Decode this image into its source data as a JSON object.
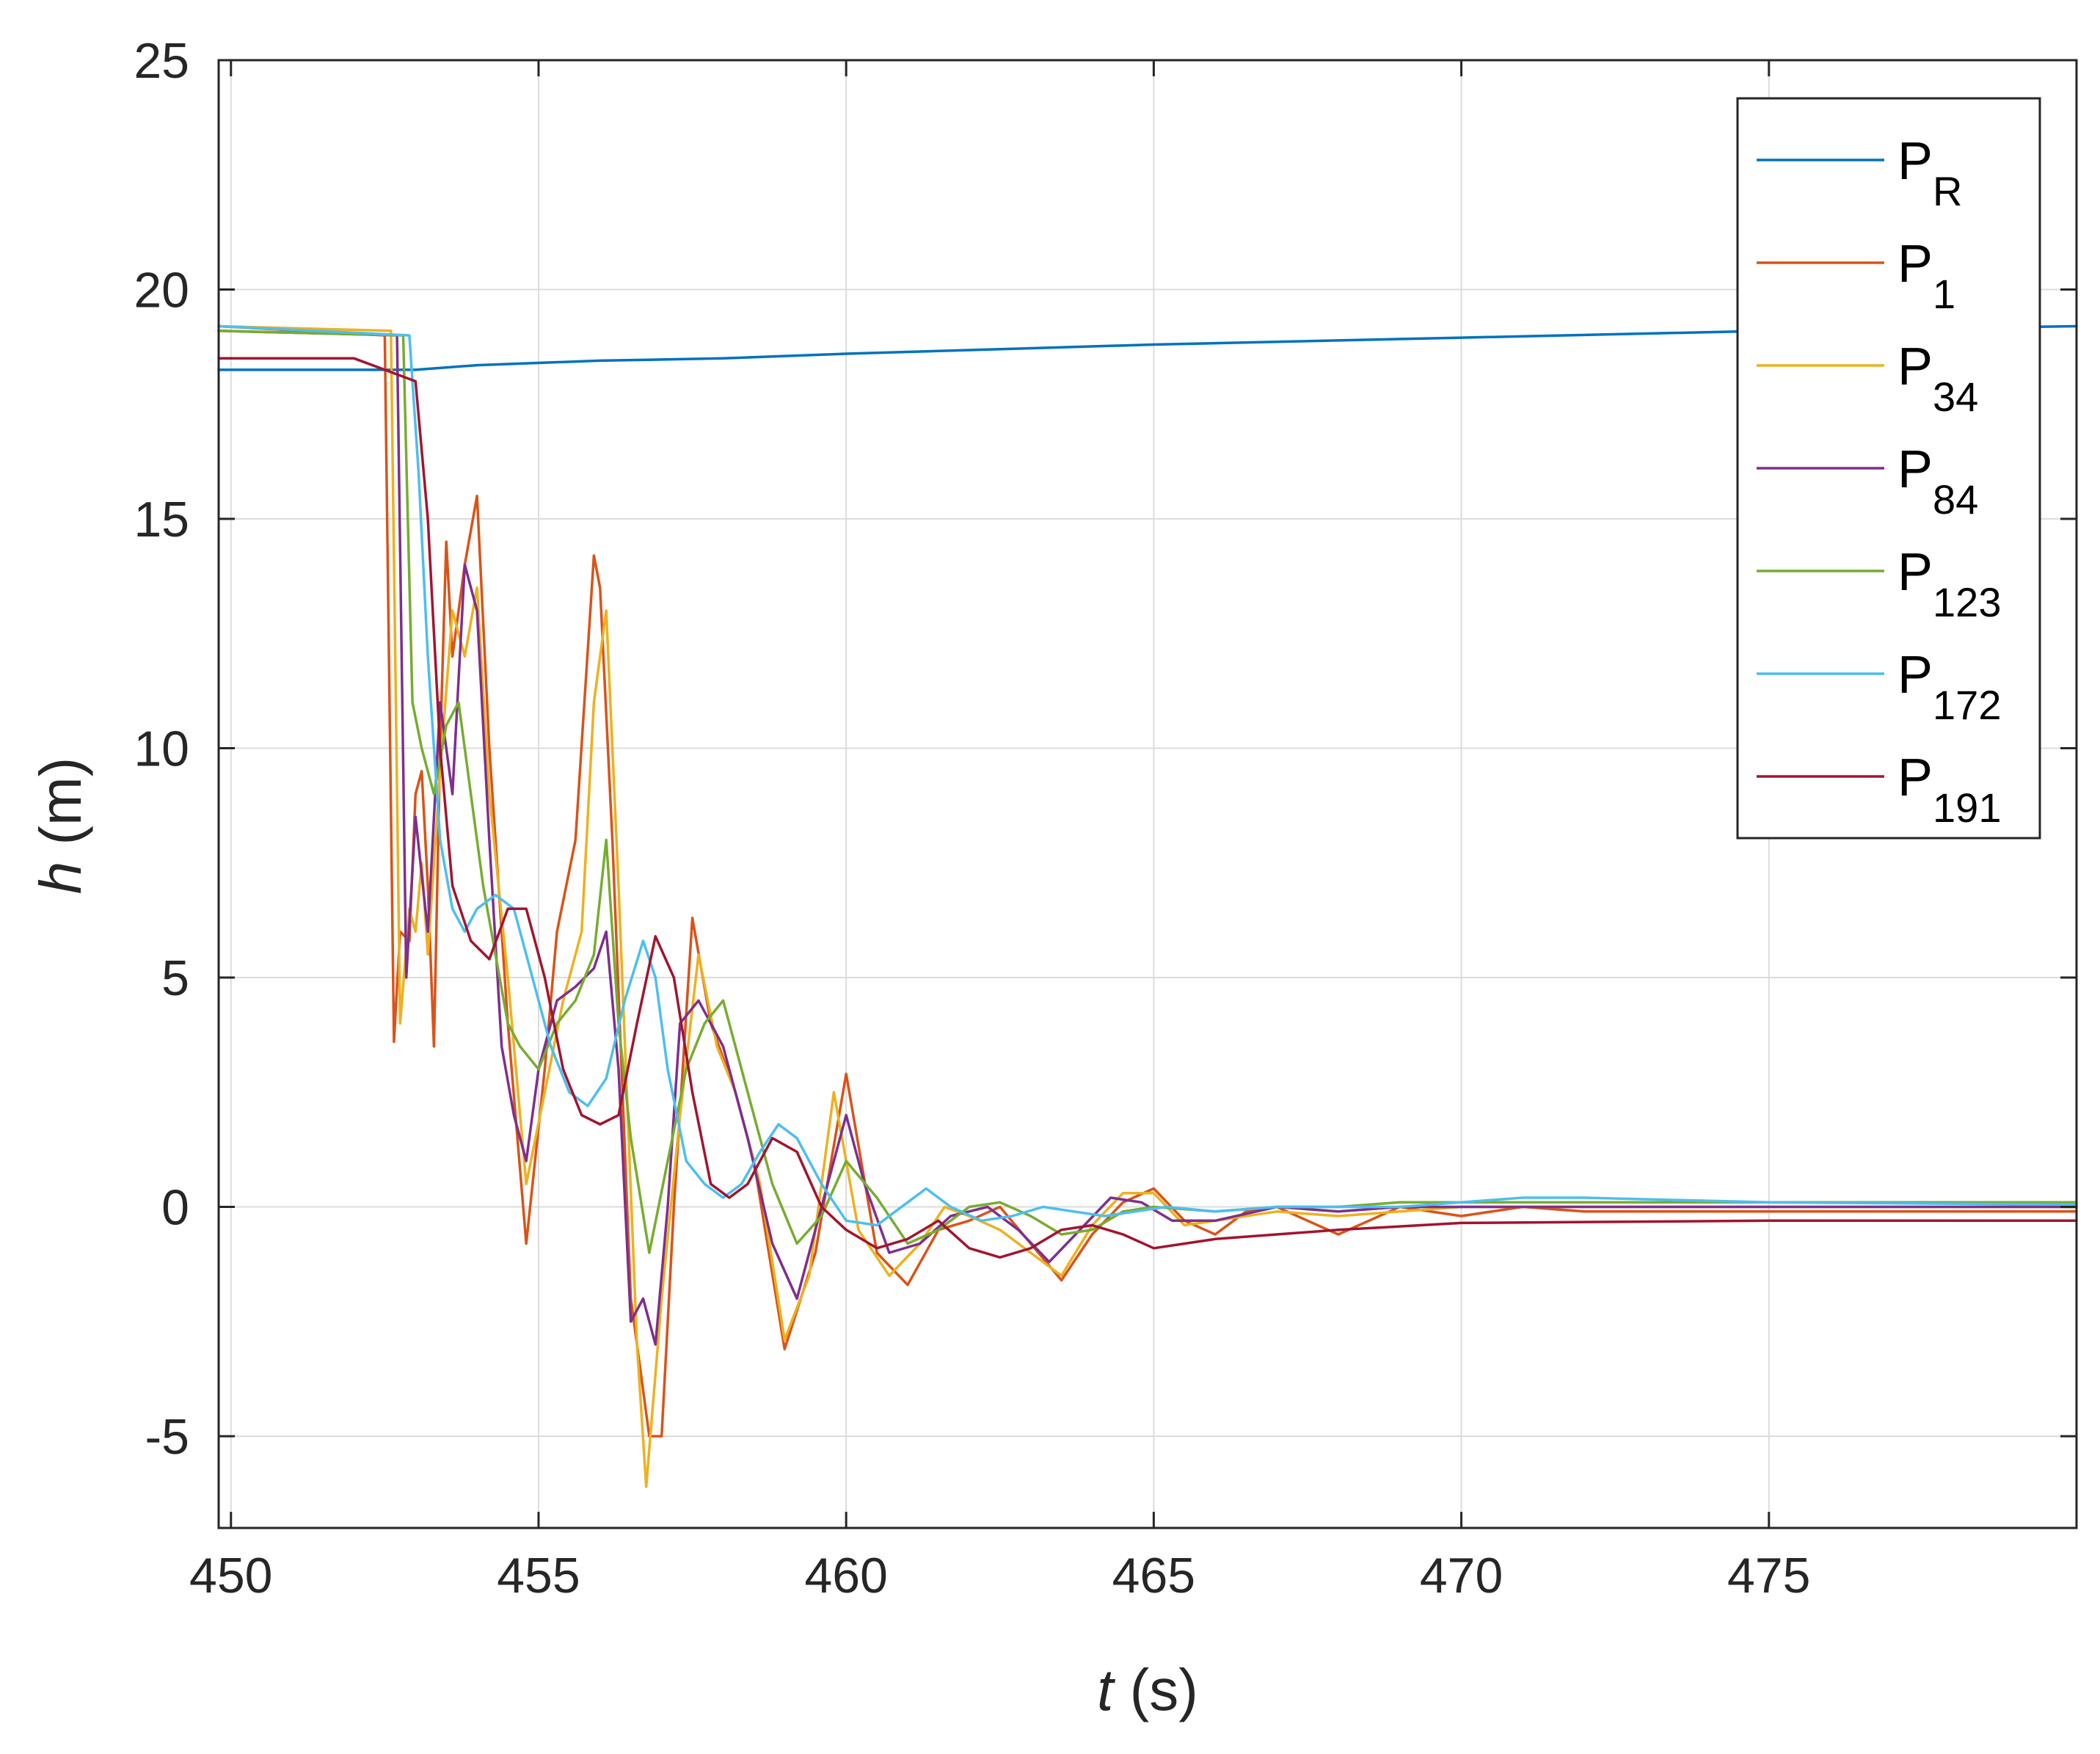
{
  "chart_data": {
    "type": "line",
    "xlabel": {
      "italic": "t",
      "rest": " (s)"
    },
    "ylabel": {
      "italic": "h",
      "rest": " (m)"
    },
    "xlim": [
      449.8,
      480
    ],
    "ylim": [
      -7,
      25
    ],
    "xticks": [
      450,
      455,
      460,
      465,
      470,
      475
    ],
    "xtick_labels": [
      "450",
      "455",
      "460",
      "465",
      "470",
      "475"
    ],
    "yticks": [
      -5,
      0,
      5,
      10,
      15,
      20,
      25
    ],
    "ytick_labels": [
      "-5",
      "0",
      "5",
      "10",
      "15",
      "20",
      "25"
    ],
    "grid": true,
    "legend_position": "top-right",
    "series": [
      {
        "name": "P",
        "sub": "R",
        "color": "#0072BD",
        "x": [
          449.8,
          453.0,
          454.0,
          456.0,
          458.0,
          460.0,
          465.0,
          470.0,
          475.0,
          480.0
        ],
        "y": [
          18.25,
          18.25,
          18.35,
          18.45,
          18.5,
          18.6,
          18.8,
          18.95,
          19.1,
          19.2
        ]
      },
      {
        "name": "P",
        "sub": "1",
        "color": "#D95319",
        "x": [
          449.8,
          452.5,
          452.65,
          452.75,
          452.9,
          453.0,
          453.1,
          453.2,
          453.3,
          453.4,
          453.5,
          453.6,
          453.8,
          454.0,
          454.2,
          454.5,
          454.8,
          455.1,
          455.3,
          455.6,
          455.9,
          456.0,
          456.2,
          456.5,
          456.8,
          457.0,
          457.2,
          457.5,
          457.8,
          458.2,
          458.5,
          459.0,
          459.5,
          460.0,
          460.5,
          461.0,
          461.5,
          462.0,
          462.5,
          463.0,
          463.5,
          464.0,
          464.5,
          465.0,
          465.5,
          466.0,
          466.5,
          467.0,
          467.5,
          468.0,
          468.5,
          469.0,
          470.0,
          471.0,
          472.0,
          475.0,
          480.0
        ],
        "y": [
          19.2,
          19.0,
          3.6,
          6.0,
          5.8,
          9.0,
          9.5,
          7.0,
          3.5,
          10.0,
          14.5,
          12.0,
          14.0,
          15.5,
          10.0,
          4.0,
          -0.8,
          3.0,
          6.0,
          8.0,
          14.2,
          13.5,
          8.0,
          -2.0,
          -5.0,
          -5.0,
          0.0,
          6.3,
          4.0,
          2.5,
          1.0,
          -3.1,
          -1.0,
          2.9,
          -1.0,
          -1.7,
          -0.5,
          -0.3,
          0.0,
          -0.8,
          -1.6,
          -0.6,
          0.1,
          0.4,
          -0.3,
          -0.6,
          -0.1,
          0.0,
          -0.3,
          -0.6,
          -0.3,
          0.0,
          -0.2,
          0.0,
          -0.1,
          -0.1,
          -0.1
        ]
      },
      {
        "name": "P",
        "sub": "34",
        "color": "#EDB120",
        "x": [
          449.8,
          452.6,
          452.75,
          452.9,
          453.0,
          453.1,
          453.2,
          453.4,
          453.6,
          453.8,
          454.0,
          454.2,
          454.5,
          454.8,
          455.1,
          455.4,
          455.7,
          455.9,
          456.1,
          456.3,
          456.6,
          456.75,
          457.0,
          457.3,
          457.6,
          457.9,
          458.2,
          458.6,
          459.0,
          459.4,
          459.8,
          460.2,
          460.7,
          461.2,
          461.6,
          462.0,
          462.5,
          463.0,
          463.5,
          464.0,
          464.5,
          465.0,
          465.5,
          466.0,
          467.0,
          468.0,
          469.0,
          470.0,
          475.0,
          480.0
        ],
        "y": [
          19.2,
          19.1,
          4.0,
          6.5,
          6.0,
          7.5,
          5.5,
          9.5,
          13.0,
          12.0,
          13.5,
          9.0,
          5.0,
          0.5,
          2.5,
          4.5,
          6.0,
          11.0,
          13.0,
          7.0,
          -3.0,
          -6.1,
          -2.0,
          2.0,
          5.5,
          3.5,
          2.5,
          0.5,
          -2.9,
          -1.5,
          2.5,
          -0.5,
          -1.5,
          -0.8,
          0.0,
          -0.2,
          -0.5,
          -1.0,
          -1.5,
          -0.4,
          0.3,
          0.3,
          -0.4,
          -0.3,
          -0.1,
          -0.2,
          -0.1,
          0.0,
          0.0,
          0.0
        ]
      },
      {
        "name": "P",
        "sub": "84",
        "color": "#7E2F8E",
        "x": [
          449.8,
          452.7,
          452.85,
          453.0,
          453.2,
          453.4,
          453.6,
          453.8,
          454.0,
          454.2,
          454.4,
          454.6,
          454.8,
          455.0,
          455.3,
          455.6,
          455.9,
          456.1,
          456.3,
          456.5,
          456.7,
          456.9,
          457.1,
          457.3,
          457.6,
          458.0,
          458.4,
          458.8,
          459.2,
          459.6,
          460.0,
          460.3,
          460.7,
          461.2,
          461.7,
          462.3,
          462.8,
          463.3,
          463.8,
          464.3,
          464.8,
          465.3,
          466.0,
          467.0,
          468.0,
          469.0,
          470.0,
          475.0,
          480.0
        ],
        "y": [
          19.1,
          19.0,
          5.0,
          8.5,
          6.0,
          11.0,
          9.0,
          14.0,
          13.0,
          8.0,
          3.5,
          2.0,
          1.0,
          3.0,
          4.5,
          4.8,
          5.2,
          6.0,
          3.0,
          -2.5,
          -2.0,
          -3.0,
          0.0,
          4.0,
          4.5,
          3.5,
          1.5,
          -0.8,
          -2.0,
          0.0,
          2.0,
          0.5,
          -1.0,
          -0.8,
          -0.2,
          0.0,
          -0.5,
          -1.2,
          -0.5,
          0.2,
          0.1,
          -0.3,
          -0.3,
          0.0,
          -0.1,
          0.0,
          0.0,
          0.0,
          0.0
        ]
      },
      {
        "name": "P",
        "sub": "123",
        "color": "#77AC30",
        "x": [
          449.8,
          452.8,
          452.95,
          453.1,
          453.3,
          453.5,
          453.7,
          453.9,
          454.1,
          454.3,
          454.5,
          454.7,
          455.0,
          455.3,
          455.6,
          455.9,
          456.1,
          456.3,
          456.5,
          456.8,
          457.1,
          457.4,
          457.7,
          458.0,
          458.4,
          458.8,
          459.2,
          459.6,
          460.0,
          460.5,
          461.0,
          461.5,
          462.0,
          462.5,
          463.0,
          463.5,
          464.0,
          464.5,
          465.0,
          466.0,
          467.0,
          468.0,
          469.0,
          470.0,
          475.0,
          480.0
        ],
        "y": [
          19.1,
          19.0,
          11.0,
          10.0,
          9.0,
          10.5,
          11.0,
          9.0,
          7.0,
          5.5,
          4.0,
          3.5,
          3.0,
          4.0,
          4.5,
          5.5,
          8.0,
          4.0,
          1.5,
          -1.0,
          1.0,
          3.0,
          4.0,
          4.5,
          2.5,
          0.5,
          -0.8,
          -0.2,
          1.0,
          0.2,
          -0.8,
          -0.5,
          0.0,
          0.1,
          -0.2,
          -0.6,
          -0.5,
          -0.1,
          0.0,
          -0.1,
          0.0,
          0.0,
          0.1,
          0.1,
          0.1,
          0.1
        ]
      },
      {
        "name": "P",
        "sub": "172",
        "color": "#4DBEEE",
        "x": [
          449.8,
          452.9,
          453.05,
          453.2,
          453.4,
          453.6,
          453.8,
          454.0,
          454.3,
          454.6,
          454.9,
          455.2,
          455.5,
          455.8,
          456.1,
          456.4,
          456.7,
          456.9,
          457.1,
          457.4,
          457.7,
          458.0,
          458.3,
          458.6,
          458.9,
          459.2,
          459.6,
          460.0,
          460.5,
          461.0,
          461.3,
          461.7,
          462.2,
          462.7,
          463.2,
          463.7,
          464.2,
          464.7,
          465.2,
          466.0,
          467.0,
          468.0,
          469.0,
          470.0,
          471.0,
          472.0,
          475.0,
          480.0
        ],
        "y": [
          19.2,
          19.0,
          16.0,
          12.0,
          8.0,
          6.5,
          6.0,
          6.5,
          6.8,
          6.5,
          5.0,
          3.5,
          2.5,
          2.2,
          2.8,
          4.5,
          5.8,
          5.0,
          3.0,
          1.0,
          0.5,
          0.2,
          0.5,
          1.2,
          1.8,
          1.5,
          0.5,
          -0.3,
          -0.4,
          0.1,
          0.4,
          0.0,
          -0.3,
          -0.2,
          0.0,
          -0.1,
          -0.2,
          -0.1,
          0.0,
          -0.1,
          0.0,
          0.0,
          0.0,
          0.1,
          0.2,
          0.2,
          0.1,
          0.05
        ]
      },
      {
        "name": "P",
        "sub": "191",
        "color": "#A2142F",
        "x": [
          449.8,
          452.0,
          453.0,
          453.2,
          453.4,
          453.6,
          453.9,
          454.2,
          454.5,
          454.8,
          455.1,
          455.4,
          455.7,
          456.0,
          456.3,
          456.6,
          456.9,
          457.2,
          457.5,
          457.8,
          458.1,
          458.4,
          458.8,
          459.2,
          459.6,
          460.0,
          460.5,
          461.0,
          461.5,
          462.0,
          462.5,
          463.0,
          463.5,
          464.0,
          464.5,
          465.0,
          466.0,
          467.0,
          468.0,
          470.0,
          475.0,
          480.0
        ],
        "y": [
          18.5,
          18.5,
          18.0,
          15.0,
          10.0,
          7.0,
          5.8,
          5.4,
          6.5,
          6.5,
          5.0,
          3.0,
          2.0,
          1.8,
          2.0,
          4.0,
          5.9,
          5.0,
          2.5,
          0.5,
          0.2,
          0.5,
          1.5,
          1.2,
          0.0,
          -0.5,
          -0.9,
          -0.7,
          -0.3,
          -0.9,
          -1.1,
          -0.9,
          -0.5,
          -0.4,
          -0.6,
          -0.9,
          -0.7,
          -0.6,
          -0.5,
          -0.35,
          -0.3,
          -0.3
        ]
      }
    ]
  }
}
